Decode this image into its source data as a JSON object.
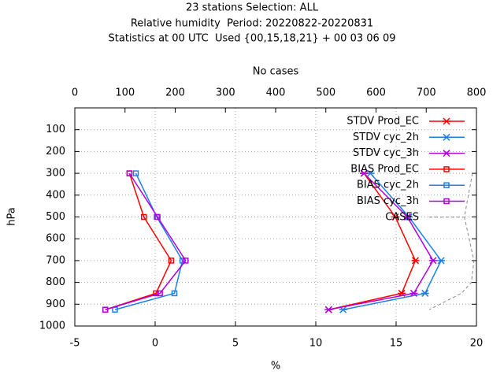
{
  "chart_data": {
    "type": "line",
    "title": [
      "23 stations Selection: ALL",
      "Relative humidity  Period: 20220822-20220831",
      "Statistics at 00 UTC  Used {00,15,18,21} + 00 03 06 09"
    ],
    "xlabel": "%",
    "x2label": "No cases",
    "ylabel": "hPa",
    "xlim": [
      -5,
      20
    ],
    "xticks": [
      -5,
      0,
      5,
      10,
      15,
      20
    ],
    "x2lim": [
      0,
      800
    ],
    "x2ticks": [
      0,
      100,
      200,
      300,
      400,
      500,
      600,
      700,
      800
    ],
    "ylim": [
      1000,
      0
    ],
    "yticks": [
      100,
      200,
      300,
      400,
      500,
      600,
      700,
      800,
      900,
      1000
    ],
    "grid": true,
    "legend": "top-right",
    "series": [
      {
        "name": "STDV Prod_EC",
        "color": "#ff0000",
        "marker": "star",
        "y": [
          300,
          500,
          700,
          850,
          925
        ],
        "values": [
          13.0,
          14.95,
          16.2,
          15.35,
          10.8
        ]
      },
      {
        "name": "STDV cyc_2h",
        "color": "#1e7fe6",
        "marker": "star",
        "y": [
          300,
          500,
          700,
          850,
          925
        ],
        "values": [
          13.4,
          15.8,
          17.8,
          16.8,
          11.7
        ]
      },
      {
        "name": "STDV cyc_3h",
        "color": "#b000e0",
        "marker": "star",
        "y": [
          300,
          500,
          700,
          850,
          925
        ],
        "values": [
          13.0,
          15.7,
          17.3,
          16.1,
          10.8
        ]
      },
      {
        "name": "BIAS Prod_EC",
        "color": "#ff0000",
        "marker": "square",
        "y": [
          300,
          500,
          700,
          850,
          925
        ],
        "values": [
          -1.6,
          -0.7,
          1.0,
          0.05,
          -3.1
        ]
      },
      {
        "name": "BIAS cyc_2h",
        "color": "#1e7fe6",
        "marker": "square",
        "y": [
          300,
          500,
          700,
          850,
          925
        ],
        "values": [
          -1.2,
          0.1,
          1.7,
          1.2,
          -2.5
        ]
      },
      {
        "name": "BIAS cyc_3h",
        "color": "#b000e0",
        "marker": "square",
        "y": [
          300,
          500,
          700,
          850,
          925
        ],
        "values": [
          -1.6,
          0.15,
          1.9,
          0.3,
          -3.1
        ]
      },
      {
        "name": "CASES",
        "color": "#888888",
        "dash": true,
        "axis": "x2",
        "y": [
          300,
          400,
          500,
          700,
          800,
          850,
          925
        ],
        "values": [
          792,
          784,
          776,
          795,
          790,
          770,
          706
        ]
      }
    ]
  }
}
